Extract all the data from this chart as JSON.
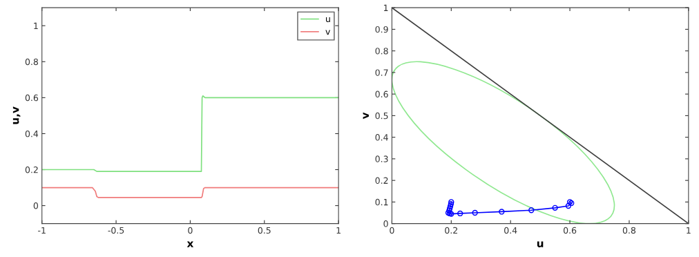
{
  "chart_data": [
    {
      "type": "line",
      "xlabel": "x",
      "ylabel": "u,v",
      "xlim": [
        -1,
        1
      ],
      "xticks": [
        -1,
        -0.5,
        0,
        0.5,
        1
      ],
      "ylim": [
        -0.1,
        1.1
      ],
      "yticks": [
        0,
        0.2,
        0.4,
        0.6,
        0.8,
        1
      ],
      "legend": "top right",
      "series": [
        {
          "name": "u",
          "color": "#7ee07e",
          "x": [
            -1,
            -0.65,
            -0.63,
            0.075,
            0.08,
            0.085,
            0.1,
            1
          ],
          "values": [
            0.2,
            0.2,
            0.19,
            0.19,
            0.6,
            0.61,
            0.6,
            0.6
          ]
        },
        {
          "name": "v",
          "color": "#f07a7a",
          "x": [
            -1,
            -0.66,
            -0.64,
            -0.63,
            -0.62,
            0.075,
            0.08,
            0.09,
            0.1,
            1
          ],
          "values": [
            0.1,
            0.1,
            0.08,
            0.05,
            0.045,
            0.045,
            0.05,
            0.095,
            0.1,
            0.1
          ]
        }
      ]
    },
    {
      "type": "line",
      "xlabel": "u",
      "ylabel": "v",
      "xlim": [
        0,
        1
      ],
      "xticks": [
        0,
        0.2,
        0.4,
        0.6,
        0.8,
        1
      ],
      "ylim": [
        0,
        1
      ],
      "yticks": [
        0,
        0.1,
        0.2,
        0.3,
        0.4,
        0.5,
        0.6,
        0.7,
        0.8,
        0.9,
        1
      ],
      "series": [
        {
          "color": "#404040",
          "x": [
            0,
            1
          ],
          "values": [
            1,
            0
          ]
        },
        {
          "color": "#0000ff",
          "marker": "circle",
          "x": [
            0.2,
            0.199,
            0.197,
            0.195,
            0.193,
            0.19,
            0.195,
            0.2,
            0.23,
            0.28,
            0.37,
            0.47,
            0.55,
            0.595,
            0.605,
            0.6
          ],
          "values": [
            0.1,
            0.09,
            0.08,
            0.07,
            0.06,
            0.05,
            0.047,
            0.045,
            0.047,
            0.05,
            0.055,
            0.062,
            0.073,
            0.082,
            0.095,
            0.1
          ]
        }
      ]
    }
  ]
}
